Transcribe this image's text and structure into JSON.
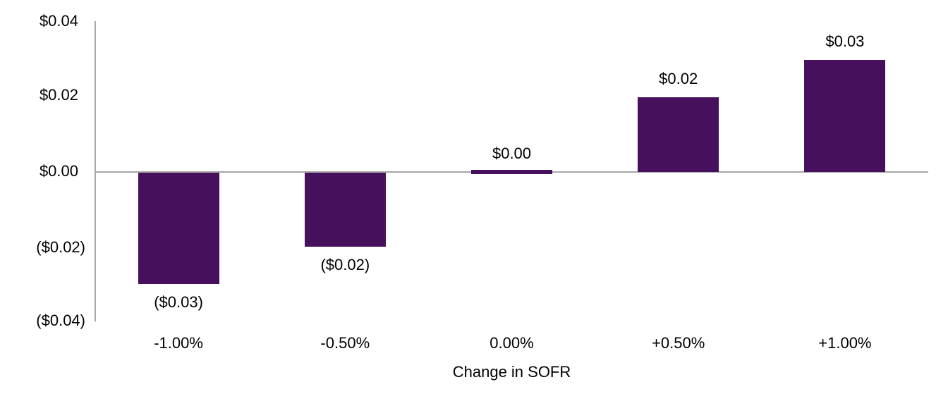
{
  "chart_data": {
    "type": "bar",
    "title": "",
    "xlabel": "Change in SOFR",
    "ylabel": "",
    "categories": [
      "-1.00%",
      "-0.50%",
      "0.00%",
      "+0.50%",
      "+1.00%"
    ],
    "values": [
      -0.03,
      -0.02,
      0.0,
      0.02,
      0.03
    ],
    "bar_labels": [
      "($0.03)",
      "($0.02)",
      "$0.00",
      "$0.02",
      "$0.03"
    ],
    "yticks": [
      {
        "label": "$0.04",
        "value": 0.04,
        "paren": false
      },
      {
        "label": "$0.02",
        "value": 0.02,
        "paren": false
      },
      {
        "label": "$0.00",
        "value": 0.0,
        "paren": false
      },
      {
        "label": "($0.02)",
        "value": -0.02,
        "paren": true
      },
      {
        "label": "($0.04)",
        "value": -0.04,
        "paren": true
      }
    ],
    "ylim": [
      -0.04,
      0.04
    ],
    "grid": false,
    "legend": false,
    "colors": {
      "bar": "#47105C",
      "axis_line": "#A6A6A6",
      "text": "#000000",
      "background": "#FFFFFF"
    }
  }
}
